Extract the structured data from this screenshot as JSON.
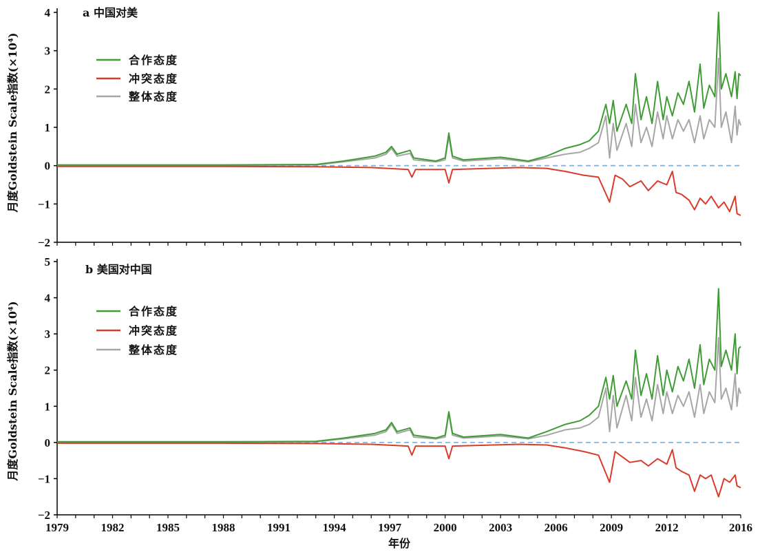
{
  "chart_data": [
    {
      "type": "line",
      "title": "a 中国对美",
      "ylabel": "月度Goldstein Scale指数(×10⁴)",
      "xlabel": "",
      "xlim": [
        1979,
        2016
      ],
      "ylim": [
        -2,
        4
      ],
      "yticks": [
        -2,
        -1,
        0,
        1,
        2,
        3,
        4
      ],
      "legend_position": "upper-left",
      "series": [
        {
          "name": "合作态度",
          "color": "#3f9c35",
          "x": [
            1979,
            1988,
            1993,
            1994.5,
            1996.2,
            1996.8,
            1997.1,
            1997.4,
            1998.1,
            1998.3,
            1999.5,
            2000.0,
            2000.2,
            2000.4,
            2001,
            2003,
            2004.5,
            2005.5,
            2006.5,
            2007.3,
            2007.8,
            2008.3,
            2008.7,
            2008.9,
            2009.1,
            2009.3,
            2009.8,
            2010.1,
            2010.3,
            2010.6,
            2010.9,
            2011.2,
            2011.5,
            2011.8,
            2012.0,
            2012.3,
            2012.6,
            2012.9,
            2013.2,
            2013.5,
            2013.8,
            2014.0,
            2014.3,
            2014.6,
            2014.8,
            2014.95,
            2015.2,
            2015.5,
            2015.7,
            2015.8,
            2015.9,
            2016
          ],
          "y": [
            0.02,
            0.02,
            0.03,
            0.12,
            0.25,
            0.35,
            0.5,
            0.3,
            0.4,
            0.2,
            0.12,
            0.2,
            0.85,
            0.25,
            0.15,
            0.22,
            0.12,
            0.25,
            0.45,
            0.55,
            0.65,
            0.9,
            1.6,
            1.1,
            1.7,
            0.9,
            1.6,
            1.1,
            2.4,
            1.2,
            1.8,
            1.1,
            2.2,
            1.2,
            1.8,
            1.3,
            1.9,
            1.6,
            2.2,
            1.4,
            2.65,
            1.5,
            2.1,
            1.8,
            4.0,
            2.0,
            2.4,
            1.8,
            2.45,
            1.75,
            2.4,
            2.35
          ]
        },
        {
          "name": "冲突态度",
          "color": "#d93a2b",
          "x": [
            1979,
            1988,
            1993,
            1996,
            1998.0,
            1998.2,
            1998.4,
            2000.0,
            2000.2,
            2000.4,
            2004,
            2005.5,
            2006.5,
            2007.5,
            2008.3,
            2008.9,
            2009.2,
            2009.6,
            2010.0,
            2010.6,
            2011.0,
            2011.5,
            2012.0,
            2012.3,
            2012.5,
            2012.8,
            2013.2,
            2013.5,
            2013.8,
            2014.1,
            2014.4,
            2014.8,
            2015.1,
            2015.4,
            2015.7,
            2015.8,
            2016
          ],
          "y": [
            -0.02,
            -0.02,
            -0.03,
            -0.05,
            -0.1,
            -0.3,
            -0.1,
            -0.1,
            -0.45,
            -0.1,
            -0.05,
            -0.07,
            -0.15,
            -0.25,
            -0.3,
            -0.95,
            -0.25,
            -0.35,
            -0.55,
            -0.4,
            -0.65,
            -0.4,
            -0.5,
            -0.15,
            -0.7,
            -0.75,
            -0.9,
            -1.15,
            -0.85,
            -1.0,
            -0.8,
            -1.1,
            -0.95,
            -1.2,
            -0.8,
            -1.25,
            -1.3
          ]
        },
        {
          "name": "整体态度",
          "color": "#a6a6a6",
          "x": [
            1979,
            1988,
            1993,
            1994.5,
            1996.2,
            1996.8,
            1997.1,
            1997.4,
            1998.1,
            1998.3,
            1999.5,
            2000.0,
            2000.2,
            2000.4,
            2001,
            2003,
            2004.5,
            2005.5,
            2006.5,
            2007.3,
            2007.8,
            2008.3,
            2008.7,
            2008.9,
            2009.1,
            2009.3,
            2009.8,
            2010.1,
            2010.3,
            2010.6,
            2010.9,
            2011.2,
            2011.5,
            2011.8,
            2012.0,
            2012.3,
            2012.6,
            2012.9,
            2013.2,
            2013.5,
            2013.8,
            2014.0,
            2014.3,
            2014.6,
            2014.8,
            2014.95,
            2015.2,
            2015.5,
            2015.7,
            2015.8,
            2015.9,
            2016
          ],
          "y": [
            0.01,
            0.01,
            0.02,
            0.1,
            0.2,
            0.3,
            0.45,
            0.25,
            0.32,
            0.15,
            0.1,
            0.15,
            0.75,
            0.2,
            0.12,
            0.18,
            0.1,
            0.2,
            0.3,
            0.35,
            0.45,
            0.6,
            1.3,
            0.2,
            1.1,
            0.4,
            1.1,
            0.5,
            1.6,
            0.6,
            1.0,
            0.5,
            1.4,
            0.7,
            1.3,
            0.7,
            1.2,
            0.9,
            1.2,
            0.6,
            1.3,
            0.7,
            1.2,
            1.0,
            2.8,
            1.0,
            1.4,
            0.6,
            1.55,
            0.8,
            1.2,
            1.05
          ]
        }
      ]
    },
    {
      "type": "line",
      "title": "b 美国对中国",
      "ylabel": "月度Goldstein Scale指数(×10⁴)",
      "xlabel": "年份",
      "xlim": [
        1979,
        2016
      ],
      "ylim": [
        -2,
        5
      ],
      "yticks": [
        -2,
        -1,
        0,
        1,
        2,
        3,
        4,
        5
      ],
      "legend_position": "upper-left",
      "series": [
        {
          "name": "合作态度",
          "color": "#3f9c35",
          "x": [
            1979,
            1988,
            1993,
            1994.5,
            1996.2,
            1996.8,
            1997.1,
            1997.4,
            1998.1,
            1998.3,
            1999.5,
            2000.0,
            2000.2,
            2000.4,
            2001,
            2003,
            2004.5,
            2005.5,
            2006.5,
            2007.3,
            2007.8,
            2008.3,
            2008.7,
            2008.9,
            2009.1,
            2009.3,
            2009.8,
            2010.1,
            2010.3,
            2010.6,
            2010.9,
            2011.2,
            2011.5,
            2011.8,
            2012.0,
            2012.3,
            2012.6,
            2012.9,
            2013.2,
            2013.5,
            2013.8,
            2014.0,
            2014.3,
            2014.6,
            2014.8,
            2014.95,
            2015.2,
            2015.5,
            2015.7,
            2015.8,
            2015.9,
            2016
          ],
          "y": [
            0.02,
            0.02,
            0.03,
            0.12,
            0.25,
            0.35,
            0.55,
            0.3,
            0.4,
            0.2,
            0.12,
            0.2,
            0.85,
            0.25,
            0.15,
            0.22,
            0.12,
            0.3,
            0.5,
            0.6,
            0.75,
            1.0,
            1.8,
            1.2,
            1.85,
            1.0,
            1.7,
            1.2,
            2.55,
            1.3,
            1.9,
            1.2,
            2.4,
            1.3,
            2.0,
            1.4,
            2.1,
            1.7,
            2.3,
            1.5,
            2.7,
            1.6,
            2.3,
            2.0,
            4.25,
            2.1,
            2.55,
            2.0,
            3.0,
            1.9,
            2.6,
            2.65
          ]
        },
        {
          "name": "冲突态度",
          "color": "#d93a2b",
          "x": [
            1979,
            1988,
            1993,
            1996,
            1998.0,
            1998.2,
            1998.4,
            2000.0,
            2000.2,
            2000.4,
            2004,
            2005.5,
            2006.5,
            2007.5,
            2008.3,
            2008.9,
            2009.2,
            2009.6,
            2010.0,
            2010.6,
            2011.0,
            2011.5,
            2012.0,
            2012.3,
            2012.5,
            2012.8,
            2013.2,
            2013.5,
            2013.8,
            2014.1,
            2014.4,
            2014.8,
            2015.1,
            2015.4,
            2015.7,
            2015.8,
            2016
          ],
          "y": [
            -0.02,
            -0.02,
            -0.03,
            -0.05,
            -0.1,
            -0.35,
            -0.1,
            -0.1,
            -0.45,
            -0.1,
            -0.05,
            -0.07,
            -0.15,
            -0.25,
            -0.35,
            -1.1,
            -0.25,
            -0.4,
            -0.55,
            -0.5,
            -0.65,
            -0.45,
            -0.6,
            -0.2,
            -0.7,
            -0.8,
            -0.9,
            -1.35,
            -0.9,
            -1.0,
            -0.9,
            -1.5,
            -1.0,
            -1.1,
            -0.9,
            -1.2,
            -1.25
          ]
        },
        {
          "name": "整体态度",
          "color": "#a6a6a6",
          "x": [
            1979,
            1988,
            1993,
            1994.5,
            1996.2,
            1996.8,
            1997.1,
            1997.4,
            1998.1,
            1998.3,
            1999.5,
            2000.0,
            2000.2,
            2000.4,
            2001,
            2003,
            2004.5,
            2005.5,
            2006.5,
            2007.3,
            2007.8,
            2008.3,
            2008.7,
            2008.9,
            2009.1,
            2009.3,
            2009.8,
            2010.1,
            2010.3,
            2010.6,
            2010.9,
            2011.2,
            2011.5,
            2011.8,
            2012.0,
            2012.3,
            2012.6,
            2012.9,
            2013.2,
            2013.5,
            2013.8,
            2014.0,
            2014.3,
            2014.6,
            2014.8,
            2014.95,
            2015.2,
            2015.5,
            2015.7,
            2015.8,
            2015.9,
            2016
          ],
          "y": [
            0.01,
            0.01,
            0.02,
            0.1,
            0.2,
            0.3,
            0.5,
            0.25,
            0.35,
            0.15,
            0.1,
            0.15,
            0.8,
            0.2,
            0.12,
            0.18,
            0.1,
            0.2,
            0.35,
            0.4,
            0.5,
            0.7,
            1.5,
            0.3,
            1.3,
            0.4,
            1.3,
            0.6,
            1.8,
            0.7,
            1.2,
            0.6,
            1.6,
            0.8,
            1.4,
            0.8,
            1.3,
            1.0,
            1.4,
            0.7,
            1.6,
            0.8,
            1.4,
            1.1,
            2.9,
            1.2,
            1.5,
            0.9,
            1.9,
            1.0,
            1.5,
            1.35
          ]
        }
      ]
    }
  ],
  "xaxis": {
    "ticks": [
      "1979",
      "1982",
      "1985",
      "1988",
      "1991",
      "1994",
      "1997",
      "2000",
      "2003",
      "2006",
      "2009",
      "2012",
      "2016"
    ],
    "tick_values": [
      1979,
      1982,
      1985,
      1988,
      1991,
      1994,
      1997,
      2000,
      2003,
      2006,
      2009,
      2012,
      2016
    ],
    "title": "年份"
  },
  "zero_line_color": "#7fb5e0"
}
